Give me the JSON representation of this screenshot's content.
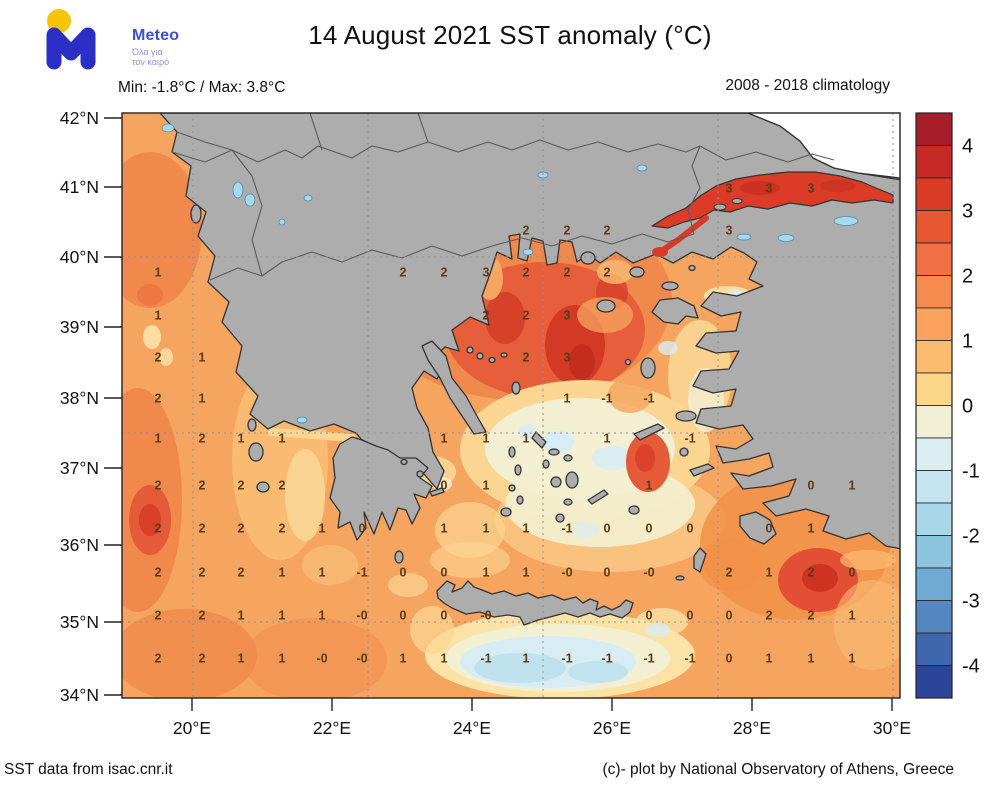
{
  "logo": {
    "brand": "Meteo",
    "tagline1": "Όλα για",
    "tagline2": "τον καιρό",
    "m_color": "#2B2FC6",
    "dot_color": "#F5C402",
    "brand_color": "#3D4FD6",
    "tagline_color": "#8A94D8"
  },
  "header": {
    "title": "14 August 2021 SST anomaly (°C)",
    "minmax": "Min: -1.8°C / Max: 3.8°C",
    "climatology": "2008 - 2018 climatology"
  },
  "footer": {
    "left": "SST data from isac.cnr.it",
    "right": "(c)- plot by National Observatory of Athens, Greece"
  },
  "map": {
    "x_ticks": [
      {
        "label": "20°E",
        "lon": 20
      },
      {
        "label": "22°E",
        "lon": 22
      },
      {
        "label": "24°E",
        "lon": 24
      },
      {
        "label": "26°E",
        "lon": 26
      },
      {
        "label": "28°E",
        "lon": 28
      },
      {
        "label": "30°E",
        "lon": 30
      }
    ],
    "y_ticks": [
      {
        "label": "42°N",
        "lat": 42
      },
      {
        "label": "41°N",
        "lat": 41
      },
      {
        "label": "40°N",
        "lat": 40
      },
      {
        "label": "39°N",
        "lat": 39
      },
      {
        "label": "38°N",
        "lat": 38
      },
      {
        "label": "37°N",
        "lat": 37
      },
      {
        "label": "36°N",
        "lat": 36
      },
      {
        "label": "35°N",
        "lat": 35
      },
      {
        "label": "34°N",
        "lat": 34
      }
    ],
    "colors": {
      "sea_base": "#F5A55F",
      "land": "#ADADAD",
      "coast": "#333333",
      "border": "#5a5a5a",
      "lake": "#A6D9EC",
      "nodata": "#FFFFFF",
      "number": "#5a3c12",
      "grid": "#909090",
      "marmara_red": "#DC3B28"
    },
    "value_grid": {
      "cols": [
        158,
        202,
        241,
        282,
        322,
        362,
        403,
        444,
        486,
        526,
        567,
        607,
        649,
        690,
        729,
        769,
        811,
        852
      ],
      "rows": [
        188,
        230,
        272,
        315,
        357,
        398,
        438,
        485,
        528,
        572,
        615,
        658
      ],
      "points": [
        [
          14,
          0,
          "3"
        ],
        [
          15,
          0,
          "3"
        ],
        [
          16,
          0,
          "3"
        ],
        [
          9,
          1,
          "2"
        ],
        [
          10,
          1,
          "2"
        ],
        [
          11,
          1,
          "2"
        ],
        [
          14,
          1,
          "3"
        ],
        [
          0,
          2,
          "1"
        ],
        [
          6,
          2,
          "2"
        ],
        [
          7,
          2,
          "2"
        ],
        [
          8,
          2,
          "3"
        ],
        [
          9,
          2,
          "2"
        ],
        [
          10,
          2,
          "2"
        ],
        [
          11,
          2,
          "2"
        ],
        [
          0,
          3,
          "1"
        ],
        [
          8,
          3,
          "2"
        ],
        [
          9,
          3,
          "2"
        ],
        [
          10,
          3,
          "3"
        ],
        [
          0,
          4,
          "2"
        ],
        [
          1,
          4,
          "1"
        ],
        [
          9,
          4,
          "2"
        ],
        [
          10,
          4,
          "3"
        ],
        [
          0,
          5,
          "2"
        ],
        [
          1,
          5,
          "1"
        ],
        [
          10,
          5,
          "1"
        ],
        [
          11,
          5,
          "-1"
        ],
        [
          12,
          5,
          "-1"
        ],
        [
          0,
          6,
          "1"
        ],
        [
          1,
          6,
          "2"
        ],
        [
          2,
          6,
          "1"
        ],
        [
          3,
          6,
          "1"
        ],
        [
          7,
          6,
          "1"
        ],
        [
          8,
          6,
          "1"
        ],
        [
          9,
          6,
          "1"
        ],
        [
          11,
          6,
          "1"
        ],
        [
          13,
          6,
          "-1"
        ],
        [
          0,
          7,
          "2"
        ],
        [
          1,
          7,
          "2"
        ],
        [
          2,
          7,
          "2"
        ],
        [
          3,
          7,
          "2"
        ],
        [
          7,
          7,
          "0"
        ],
        [
          8,
          7,
          "1"
        ],
        [
          12,
          7,
          "1"
        ],
        [
          16,
          7,
          "0"
        ],
        [
          17,
          7,
          "1"
        ],
        [
          0,
          8,
          "2"
        ],
        [
          1,
          8,
          "2"
        ],
        [
          2,
          8,
          "2"
        ],
        [
          3,
          8,
          "2"
        ],
        [
          4,
          8,
          "1"
        ],
        [
          5,
          8,
          "0"
        ],
        [
          7,
          8,
          "1"
        ],
        [
          8,
          8,
          "1"
        ],
        [
          9,
          8,
          "1"
        ],
        [
          10,
          8,
          "-1"
        ],
        [
          11,
          8,
          "0"
        ],
        [
          12,
          8,
          "0"
        ],
        [
          13,
          8,
          "0"
        ],
        [
          15,
          8,
          "0"
        ],
        [
          16,
          8,
          "1"
        ],
        [
          0,
          9,
          "2"
        ],
        [
          1,
          9,
          "2"
        ],
        [
          2,
          9,
          "2"
        ],
        [
          3,
          9,
          "1"
        ],
        [
          4,
          9,
          "1"
        ],
        [
          5,
          9,
          "-1"
        ],
        [
          6,
          9,
          "0"
        ],
        [
          7,
          9,
          "0"
        ],
        [
          8,
          9,
          "1"
        ],
        [
          9,
          9,
          "1"
        ],
        [
          10,
          9,
          "-0"
        ],
        [
          11,
          9,
          "0"
        ],
        [
          12,
          9,
          "-0"
        ],
        [
          14,
          9,
          "2"
        ],
        [
          15,
          9,
          "1"
        ],
        [
          16,
          9,
          "2"
        ],
        [
          17,
          9,
          "0"
        ],
        [
          0,
          10,
          "2"
        ],
        [
          1,
          10,
          "2"
        ],
        [
          2,
          10,
          "1"
        ],
        [
          3,
          10,
          "1"
        ],
        [
          4,
          10,
          "1"
        ],
        [
          5,
          10,
          "-0"
        ],
        [
          6,
          10,
          "0"
        ],
        [
          7,
          10,
          "0"
        ],
        [
          8,
          10,
          "-0"
        ],
        [
          12,
          10,
          "0"
        ],
        [
          13,
          10,
          "0"
        ],
        [
          14,
          10,
          "0"
        ],
        [
          15,
          10,
          "2"
        ],
        [
          16,
          10,
          "2"
        ],
        [
          17,
          10,
          "1"
        ],
        [
          0,
          11,
          "2"
        ],
        [
          1,
          11,
          "2"
        ],
        [
          2,
          11,
          "1"
        ],
        [
          3,
          11,
          "1"
        ],
        [
          4,
          11,
          "-0"
        ],
        [
          5,
          11,
          "-0"
        ],
        [
          6,
          11,
          "1"
        ],
        [
          7,
          11,
          "1"
        ],
        [
          8,
          11,
          "-1"
        ],
        [
          9,
          11,
          "1"
        ],
        [
          10,
          11,
          "-1"
        ],
        [
          11,
          11,
          "-1"
        ],
        [
          12,
          11,
          "-1"
        ],
        [
          13,
          11,
          "-1"
        ],
        [
          14,
          11,
          "0"
        ],
        [
          15,
          11,
          "1"
        ],
        [
          16,
          11,
          "1"
        ],
        [
          17,
          11,
          "1"
        ]
      ]
    }
  },
  "colorbar": {
    "tick_labels": [
      "4",
      "3",
      "2",
      "1",
      "0",
      "-1",
      "-2",
      "-3",
      "-4"
    ],
    "segment_colors": [
      "#A81D2A",
      "#C62A27",
      "#DA3B27",
      "#E75732",
      "#F17044",
      "#F68B50",
      "#FAA35C",
      "#FCBC6E",
      "#FBD787",
      "#F0EFD5",
      "#DDEEF2",
      "#C5E4F0",
      "#A9D7EA",
      "#8DC4DE",
      "#70A9D1",
      "#5487BF",
      "#3E67AD",
      "#2D4599"
    ]
  }
}
